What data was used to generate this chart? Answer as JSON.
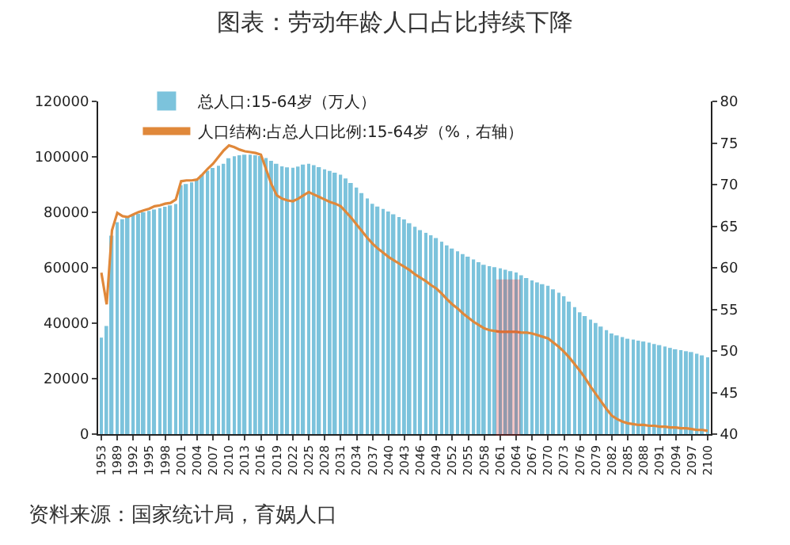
{
  "chart_data": {
    "type": "bar",
    "title": "图表：劳动年龄人口占比持续下降",
    "categories": [
      "1953",
      null,
      null,
      "1989",
      null,
      null,
      "1992",
      null,
      null,
      "1995",
      null,
      null,
      "1998",
      null,
      null,
      "2001",
      null,
      null,
      "2004",
      null,
      null,
      "2007",
      null,
      null,
      "2010",
      null,
      null,
      "2013",
      null,
      null,
      "2016",
      null,
      null,
      "2019",
      null,
      null,
      "2022",
      null,
      null,
      "2025",
      null,
      null,
      "2028",
      null,
      null,
      "2031",
      null,
      null,
      "2034",
      null,
      null,
      "2037",
      null,
      null,
      "2040",
      null,
      null,
      "2043",
      null,
      null,
      "2046",
      null,
      null,
      "2049",
      null,
      null,
      "2052",
      null,
      null,
      "2055",
      null,
      null,
      "2058",
      null,
      null,
      "2061",
      null,
      null,
      "2064",
      null,
      null,
      "2067",
      null,
      null,
      "2070",
      null,
      null,
      "2073",
      null,
      null,
      "2076",
      null,
      null,
      "2079",
      null,
      null,
      "2082",
      null,
      null,
      "2085",
      null,
      null,
      "2088",
      null,
      null,
      "2091",
      null,
      null,
      "2094",
      null,
      null,
      "2097",
      null,
      null,
      "2100"
    ],
    "series": [
      {
        "name": "总人口:15-64岁（万人）",
        "color": "#7cc3dc",
        "values": [
          34800,
          39000,
          71600,
          76400,
          77500,
          78500,
          79000,
          79500,
          80000,
          80500,
          81000,
          81500,
          82000,
          82500,
          83000,
          89800,
          90200,
          90800,
          92000,
          93500,
          95000,
          96000,
          96800,
          97500,
          99500,
          100200,
          100600,
          100800,
          100800,
          100600,
          100300,
          99600,
          98600,
          97500,
          96600,
          96200,
          96100,
          96500,
          97200,
          97500,
          97000,
          96300,
          95500,
          94900,
          94300,
          93600,
          92200,
          90600,
          88900,
          86900,
          85000,
          83100,
          82100,
          81200,
          80300,
          79300,
          78300,
          77400,
          76100,
          74800,
          73600,
          72600,
          71700,
          70700,
          69400,
          68100,
          66900,
          65900,
          64900,
          64000,
          63000,
          62000,
          61100,
          60600,
          60200,
          59800,
          59300,
          58800,
          58300,
          57300,
          56300,
          55400,
          54700,
          54100,
          53500,
          52200,
          51000,
          49700,
          47800,
          45800,
          43900,
          42600,
          41300,
          40100,
          38800,
          37500,
          36300,
          35600,
          35000,
          34400,
          34100,
          33700,
          33400,
          33000,
          32500,
          32100,
          31600,
          31100,
          30600,
          30300,
          29900,
          29600,
          29000,
          28400,
          27700
        ]
      },
      {
        "name": "人口结构:占总人口比例:15-64岁（%，右轴）",
        "type": "line",
        "axis": "y2",
        "color": "#e0883a",
        "values": [
          59.4,
          55.6,
          64.5,
          66.6,
          66.2,
          66.1,
          66.4,
          66.7,
          66.9,
          67.1,
          67.4,
          67.5,
          67.7,
          67.8,
          68.2,
          70.4,
          70.5,
          70.5,
          70.6,
          71.2,
          71.9,
          72.5,
          73.3,
          74.1,
          74.7,
          74.5,
          74.2,
          74.0,
          73.9,
          73.8,
          73.6,
          71.8,
          70.0,
          68.7,
          68.3,
          68.1,
          68.0,
          68.3,
          68.7,
          69.1,
          68.8,
          68.5,
          68.2,
          67.9,
          67.7,
          67.4,
          66.7,
          66.0,
          65.2,
          64.4,
          63.6,
          62.9,
          62.3,
          61.8,
          61.3,
          60.9,
          60.5,
          60.1,
          59.7,
          59.2,
          58.8,
          58.4,
          57.9,
          57.5,
          56.9,
          56.2,
          55.6,
          55.1,
          54.5,
          54.0,
          53.5,
          53.1,
          52.7,
          52.5,
          52.4,
          52.3,
          52.3,
          52.3,
          52.3,
          52.2,
          52.2,
          52.1,
          51.9,
          51.7,
          51.5,
          51.0,
          50.5,
          49.9,
          49.2,
          48.4,
          47.6,
          46.7,
          45.7,
          44.8,
          43.9,
          43.0,
          42.2,
          41.8,
          41.5,
          41.3,
          41.2,
          41.1,
          41.1,
          41.0,
          41.0,
          40.9,
          40.9,
          40.8,
          40.8,
          40.7,
          40.7,
          40.6,
          40.5,
          40.5,
          40.4
        ]
      }
    ],
    "ylim": [
      0,
      120000
    ],
    "yticks": [
      0,
      20000,
      40000,
      60000,
      80000,
      100000,
      120000
    ],
    "y2lim": [
      40,
      80
    ],
    "y2ticks": [
      40,
      45,
      50,
      55,
      60,
      65,
      70,
      75,
      80
    ],
    "bands": [
      {
        "axis": "x",
        "from": "2061",
        "to": "2064",
        "color": "#d42020"
      }
    ],
    "annotations": [
      "资料来源：国家统计局，育娲人口"
    ],
    "legend": "top left"
  }
}
